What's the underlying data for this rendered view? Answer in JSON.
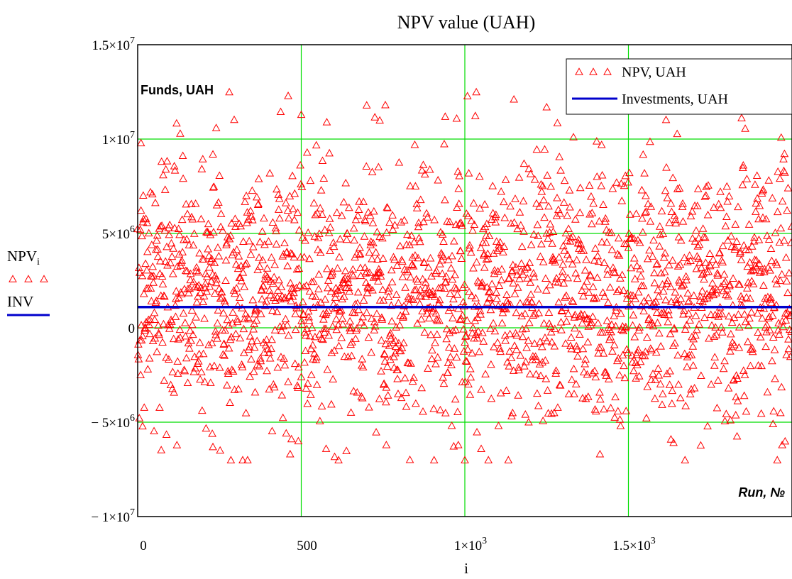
{
  "chart_data": {
    "type": "scatter",
    "title": "NPV value (UAH)",
    "xlabel": "i",
    "ylabel_main": "NPV",
    "ylabel_sub": "i",
    "ylabel_line": "INV",
    "plot_label_top": "Funds, UAH",
    "plot_label_bottom": "Run, №",
    "xlim": [
      0,
      2000
    ],
    "ylim": [
      -10000000,
      15000000
    ],
    "grid": true,
    "legend_position": "top-right",
    "x_ticks": [
      {
        "value": 0,
        "base": "0",
        "exp": ""
      },
      {
        "value": 500,
        "base": "500",
        "exp": ""
      },
      {
        "value": 1000,
        "base": "1×10",
        "exp": "3"
      },
      {
        "value": 1500,
        "base": "1.5×10",
        "exp": "3"
      }
    ],
    "y_ticks": [
      {
        "value": 15000000,
        "base": "1.5×10",
        "exp": "7"
      },
      {
        "value": 10000000,
        "base": "1×10",
        "exp": "7"
      },
      {
        "value": 5000000,
        "base": "5×10",
        "exp": "6"
      },
      {
        "value": 0,
        "base": "0",
        "exp": ""
      },
      {
        "value": -5000000,
        "base": "− 5×10",
        "exp": "6"
      },
      {
        "value": -10000000,
        "base": "− 1×10",
        "exp": "7"
      }
    ],
    "legend": [
      {
        "label": "NPV, UAH",
        "marker": "triangle"
      },
      {
        "label": "Investments, UAH",
        "marker": "line"
      }
    ],
    "series": [
      {
        "name": "NPV, UAH",
        "color": "#ff0000",
        "marker": "triangle-open",
        "n_points": 2000,
        "mean": 2000000,
        "std": 3500000,
        "min": -7000000,
        "max": 12500000,
        "highlighted_points": [
          {
            "x": 10,
            "y": 9800000
          },
          {
            "x": 15,
            "y": -5200000
          },
          {
            "x": 130,
            "y": 10300000
          },
          {
            "x": 240,
            "y": 10600000
          },
          {
            "x": 230,
            "y": -6300000
          },
          {
            "x": 460,
            "y": 12300000
          },
          {
            "x": 500,
            "y": 11300000
          },
          {
            "x": 700,
            "y": 11800000
          },
          {
            "x": 740,
            "y": 11000000
          },
          {
            "x": 940,
            "y": 11200000
          },
          {
            "x": 975,
            "y": 11100000
          },
          {
            "x": 1000,
            "y": -7000000
          },
          {
            "x": 980,
            "y": -6200000
          },
          {
            "x": 1050,
            "y": -6400000
          },
          {
            "x": 1250,
            "y": 11700000
          },
          {
            "x": 760,
            "y": -6200000
          },
          {
            "x": 1630,
            "y": -5900000
          },
          {
            "x": 1970,
            "y": -6200000
          }
        ]
      },
      {
        "name": "Investments, UAH",
        "color": "#0000cc",
        "marker": "line",
        "constant_y": 1100000
      }
    ]
  }
}
